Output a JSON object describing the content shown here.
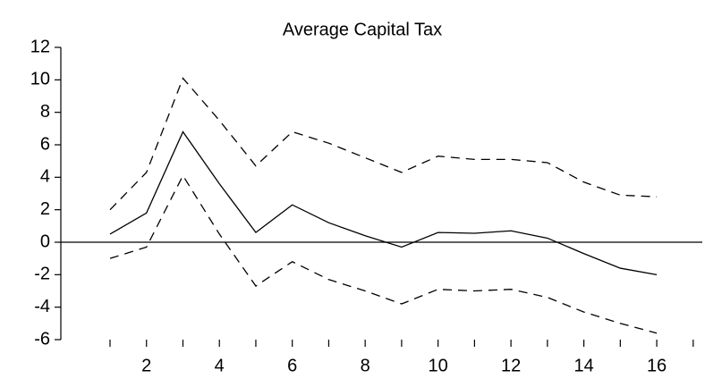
{
  "chart_data": {
    "type": "line",
    "title": "Average Capital Tax",
    "x": [
      1,
      2,
      3,
      4,
      5,
      6,
      7,
      8,
      9,
      10,
      11,
      12,
      13,
      14,
      15,
      16
    ],
    "series": [
      {
        "color": "#000000",
        "dash": "solid",
        "values": [
          0.5,
          1.8,
          6.8,
          3.6,
          0.6,
          2.3,
          1.2,
          0.4,
          -0.3,
          0.6,
          0.55,
          0.7,
          0.25,
          -0.7,
          -1.6,
          -2.0
        ]
      },
      {
        "color": "#000000",
        "dash": "dashed",
        "values": [
          2.0,
          4.3,
          10.1,
          7.5,
          4.7,
          6.8,
          6.1,
          5.2,
          4.3,
          5.3,
          5.1,
          5.1,
          4.9,
          3.7,
          2.9,
          2.8
        ]
      },
      {
        "color": "#000000",
        "dash": "dashed",
        "values": [
          -1.0,
          -0.3,
          4.1,
          0.5,
          -2.7,
          -1.2,
          -2.3,
          -3.0,
          -3.8,
          -2.9,
          -3.0,
          -2.9,
          -3.4,
          -4.3,
          -5.0,
          -5.6
        ]
      }
    ],
    "xlim": [
      -0.35,
      17.25
    ],
    "xticks": [
      2,
      4,
      6,
      8,
      10,
      12,
      14,
      16
    ],
    "xminor_ticks": [
      1,
      3,
      5,
      7,
      9,
      11,
      13,
      15,
      17
    ],
    "ylim": [
      -6,
      12
    ],
    "yticks": [
      -6,
      -4,
      -2,
      0,
      2,
      4,
      6,
      8,
      10,
      12
    ],
    "hline": 0
  }
}
